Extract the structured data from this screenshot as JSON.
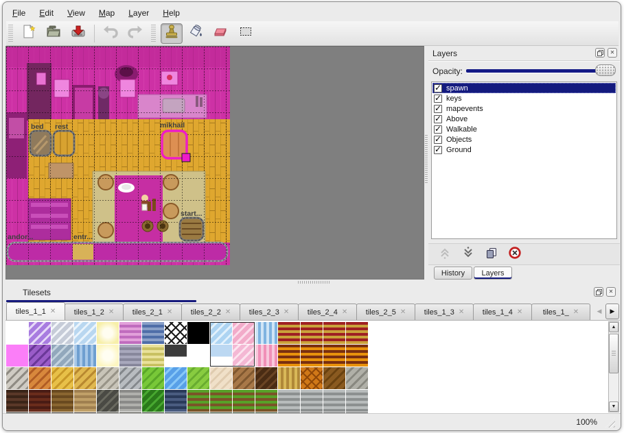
{
  "menu": {
    "items": [
      {
        "label": "File"
      },
      {
        "label": "Edit"
      },
      {
        "label": "View"
      },
      {
        "label": "Map"
      },
      {
        "label": "Layer"
      },
      {
        "label": "Help"
      }
    ]
  },
  "toolbar": {
    "buttons": [
      {
        "name": "new-file",
        "icon": "new-file-icon"
      },
      {
        "name": "open-file",
        "icon": "open-folder-icon"
      },
      {
        "name": "save-file",
        "icon": "save-icon"
      },
      {
        "name": "undo",
        "icon": "undo-arrow-icon",
        "disabled": true
      },
      {
        "name": "redo",
        "icon": "redo-arrow-icon",
        "disabled": true
      },
      {
        "name": "stamp-brush",
        "icon": "stamp-icon",
        "active": true
      },
      {
        "name": "bucket-fill",
        "icon": "bucket-icon"
      },
      {
        "name": "eraser",
        "icon": "eraser-icon"
      },
      {
        "name": "rect-select",
        "icon": "selection-icon"
      }
    ]
  },
  "map": {
    "objects": [
      {
        "label": "bed"
      },
      {
        "label": "rest"
      },
      {
        "label": "mikhail"
      },
      {
        "label": "andor..."
      },
      {
        "label": "entr..."
      },
      {
        "label": "start..."
      }
    ]
  },
  "layers_panel": {
    "title": "Layers",
    "opacity_label": "Opacity:",
    "layers": [
      {
        "name": "spawn",
        "checked": true,
        "selected": true
      },
      {
        "name": "keys",
        "checked": true
      },
      {
        "name": "mapevents",
        "checked": true
      },
      {
        "name": "Above",
        "checked": true
      },
      {
        "name": "Walkable",
        "checked": true
      },
      {
        "name": "Objects",
        "checked": true
      },
      {
        "name": "Ground",
        "checked": true
      }
    ],
    "actions": [
      {
        "name": "raise-layer",
        "icon": "raise-arrow-icon",
        "disabled": true
      },
      {
        "name": "lower-layer",
        "icon": "lower-arrow-icon"
      },
      {
        "name": "duplicate-layer",
        "icon": "duplicate-icon"
      },
      {
        "name": "delete-layer",
        "icon": "delete-icon"
      }
    ],
    "bottom_tabs": [
      {
        "label": "History",
        "active": false
      },
      {
        "label": "Layers",
        "active": true
      }
    ]
  },
  "tilesets_panel": {
    "title": "Tilesets",
    "tabs": [
      {
        "label": "tiles_1_1",
        "active": true
      },
      {
        "label": "tiles_1_2"
      },
      {
        "label": "tiles_2_1"
      },
      {
        "label": "tiles_2_2"
      },
      {
        "label": "tiles_2_3"
      },
      {
        "label": "tiles_2_4"
      },
      {
        "label": "tiles_2_5"
      },
      {
        "label": "tiles_1_3"
      },
      {
        "label": "tiles_1_4"
      },
      {
        "label": "tiles_1_"
      }
    ],
    "selection": {
      "col": 9,
      "row": 0,
      "cols": 2,
      "rows": 2
    },
    "tiles": [
      [
        "#ffffff",
        "#a87ce0:#e6d9f7:d",
        "#c6ccd8:#f2f5f9:d",
        "#b9d7f0:#eaf4fc:d",
        "#f7efa9:#fffdf0:g",
        "#e2a0da:#c06cbe:h",
        "#8aa0c8:#4f6ea8:h",
        "#ffffff:#1a1a1a:x",
        "#000000",
        "#add4f2:#e2f1fc:d",
        "#f2abc9:#fbdcea:d",
        "#cfe5f6:#7fb3e0:v",
        "#9e2023:#caa23a:h",
        "#9e2023:#caa23a:h",
        "#9e2023:#caa23a:h",
        "#9e2023:#caa23a:h"
      ],
      [
        "#fb7ef8",
        "#9a5cc8:#6a3898:d",
        "#92a8bc:#c2d2de:d",
        "#a8c8e8:#6f9fd0:v",
        "#fdf6c0:#fffef2:g",
        "#a8a8bc:#88889c:h",
        "#e9e19a:#c9c162:h",
        "#3c3c3c:#ffffff:t",
        "#ffffff",
        "#bcd8f2:#ffffff:t",
        "#f4b8d4:#fce4ef:d",
        "#f8c8dc:#f090b8:v",
        "#7a3010:#e8920c:h",
        "#7a3010:#e8920c:h",
        "#7a3010:#e8920c:h",
        "#7a3010:#e8920c:h"
      ],
      [
        "#cfcbc3:#8f8b83:d",
        "#d8883c:#b05c24:d",
        "#e8c048:#c89828:d",
        "#e0b850:#b88830:d",
        "#c8c4b8:#989488:d",
        "#b8bcc0:#84888c:d",
        "#78c838:#5aa828:d",
        "#58a0e8:#88c8f8:d",
        "#88cc40:#68ac30:d",
        "#f0e0c8:#e0ccb0:d",
        "#a87848:#805830:d",
        "#4a2c14:#6a4424:d",
        "#d8b858:#b08838:v",
        "#d07818:#904808:x",
        "#8a5a20:#6a4210:d",
        "#b0b0a8:#888880:d"
      ],
      [
        "#3a2418:#5a3828:h",
        "#4a1c14:#6a2c1c:h",
        "#6a4a20:#8a6630:h",
        "#a08050:#c0a068:h",
        "#4a4a44:#6a6a60:d",
        "#8a8a88:#b0b0ac:h",
        "#2a7a1a:#48a830:d",
        "#2a3a5a:#4a5c80:h",
        "#58a028:#7a5428:h",
        "#58a028:#7a5428:h",
        "#58a028:#7a5428:h",
        "#58a028:#7a5428:h",
        "#b8bcbc:#8c9090:h",
        "#b8bcbc:#8c9090:h",
        "#b8bcbc:#8c9090:h",
        "#b8bcbc:#8c9090:h"
      ],
      [
        "#1a1a12",
        "#241a10",
        "#2a2014",
        "#32261a",
        "#2a2a20",
        "#303028",
        "#1a3010",
        "#102030",
        "#1a3010",
        "#1a3010",
        "#1a3010",
        "#1a3010",
        "#404444",
        "#404444",
        "#404444",
        "#404444"
      ]
    ]
  },
  "status_bar": {
    "zoom_level": "100%"
  },
  "colors": {
    "selection_blue": "#141a7e",
    "map_background": "#7f7f7f",
    "wall_pink": "#cd31a5",
    "floor_wood": "#dfa72f",
    "object_selected_outline": "#ee1cc8"
  }
}
